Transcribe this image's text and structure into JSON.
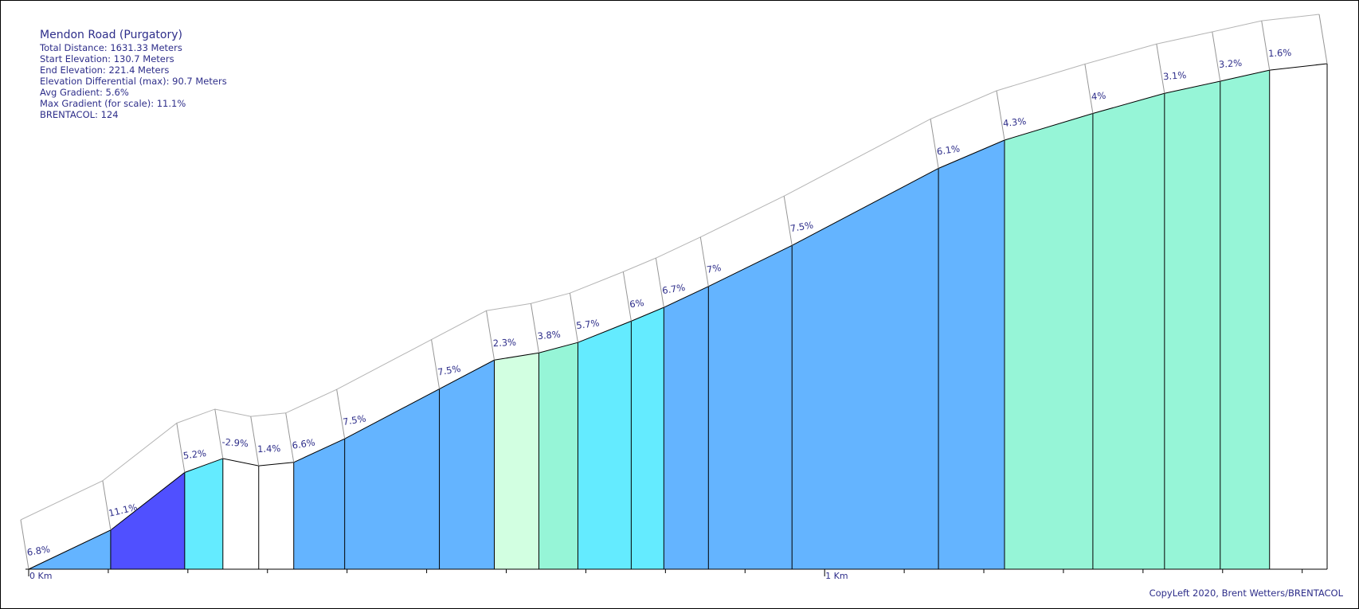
{
  "info": {
    "title": "Mendon Road (Purgatory)",
    "lines": [
      "Total Distance: 1631.33 Meters",
      "Start Elevation: 130.7 Meters",
      "End Elevation: 221.4 Meters",
      "Elevation Differential (max): 90.7 Meters",
      "Avg Gradient: 5.6%",
      "Max Gradient (for scale): 11.1%",
      "BRENTACOL: 124"
    ]
  },
  "copyright": "CopyLeft 2020, Brent Wetters/BRENTACOL",
  "chart_data": {
    "type": "area",
    "xlabel": "",
    "ylabel": "",
    "x_unit": "m",
    "y_unit": "m",
    "xlim": [
      0,
      1631.33
    ],
    "ylim": [
      130.7,
      221.4
    ],
    "x_ticks": [
      {
        "value": 0,
        "label": "0 Km"
      },
      {
        "value": 1000,
        "label": "1 Km"
      }
    ],
    "segments": [
      {
        "start_m": 0,
        "end_m": 103,
        "gradient": 6.8,
        "grade_label": "6.8%",
        "color": "#64b4ff"
      },
      {
        "start_m": 103,
        "end_m": 196,
        "gradient": 11.1,
        "grade_label": "11.1%",
        "color": "#5050ff"
      },
      {
        "start_m": 196,
        "end_m": 244,
        "gradient": 5.2,
        "grade_label": "5.2%",
        "color": "#64ebff"
      },
      {
        "start_m": 244,
        "end_m": 289,
        "gradient": -2.9,
        "grade_label": "-2.9%",
        "color": "#ffffff"
      },
      {
        "start_m": 289,
        "end_m": 333,
        "gradient": 1.4,
        "grade_label": "1.4%",
        "color": "#ffffff"
      },
      {
        "start_m": 333,
        "end_m": 397,
        "gradient": 6.6,
        "grade_label": "6.6%",
        "color": "#64b4ff"
      },
      {
        "start_m": 397,
        "end_m": 516,
        "gradient": 7.5,
        "grade_label": "7.5%",
        "color": "#64b4ff"
      },
      {
        "start_m": 516,
        "end_m": 585,
        "gradient": 7.5,
        "grade_label": "7.5%",
        "color": "#64b4ff"
      },
      {
        "start_m": 585,
        "end_m": 641,
        "gradient": 2.3,
        "grade_label": "2.3%",
        "color": "#d2ffe1"
      },
      {
        "start_m": 641,
        "end_m": 690,
        "gradient": 3.8,
        "grade_label": "3.8%",
        "color": "#96f5d7"
      },
      {
        "start_m": 690,
        "end_m": 757,
        "gradient": 5.7,
        "grade_label": "5.7%",
        "color": "#64ebff"
      },
      {
        "start_m": 757,
        "end_m": 798,
        "gradient": 6.0,
        "grade_label": "6%",
        "color": "#64ebff"
      },
      {
        "start_m": 798,
        "end_m": 854,
        "gradient": 6.7,
        "grade_label": "6.7%",
        "color": "#64b4ff"
      },
      {
        "start_m": 854,
        "end_m": 959,
        "gradient": 7.0,
        "grade_label": "7%",
        "color": "#64b4ff"
      },
      {
        "start_m": 959,
        "end_m": 1143,
        "gradient": 7.5,
        "grade_label": "7.5%",
        "color": "#64b4ff"
      },
      {
        "start_m": 1143,
        "end_m": 1226,
        "gradient": 6.1,
        "grade_label": "6.1%",
        "color": "#64b4ff"
      },
      {
        "start_m": 1226,
        "end_m": 1337,
        "gradient": 4.3,
        "grade_label": "4.3%",
        "color": "#96f5d7"
      },
      {
        "start_m": 1337,
        "end_m": 1427,
        "gradient": 4.0,
        "grade_label": "4%",
        "color": "#96f5d7"
      },
      {
        "start_m": 1427,
        "end_m": 1497,
        "gradient": 3.1,
        "grade_label": "3.1%",
        "color": "#96f5d7"
      },
      {
        "start_m": 1497,
        "end_m": 1559,
        "gradient": 3.2,
        "grade_label": "3.2%",
        "color": "#96f5d7"
      },
      {
        "start_m": 1559,
        "end_m": 1631.33,
        "gradient": 1.6,
        "grade_label": "1.6%",
        "color": "#ffffff"
      }
    ]
  }
}
